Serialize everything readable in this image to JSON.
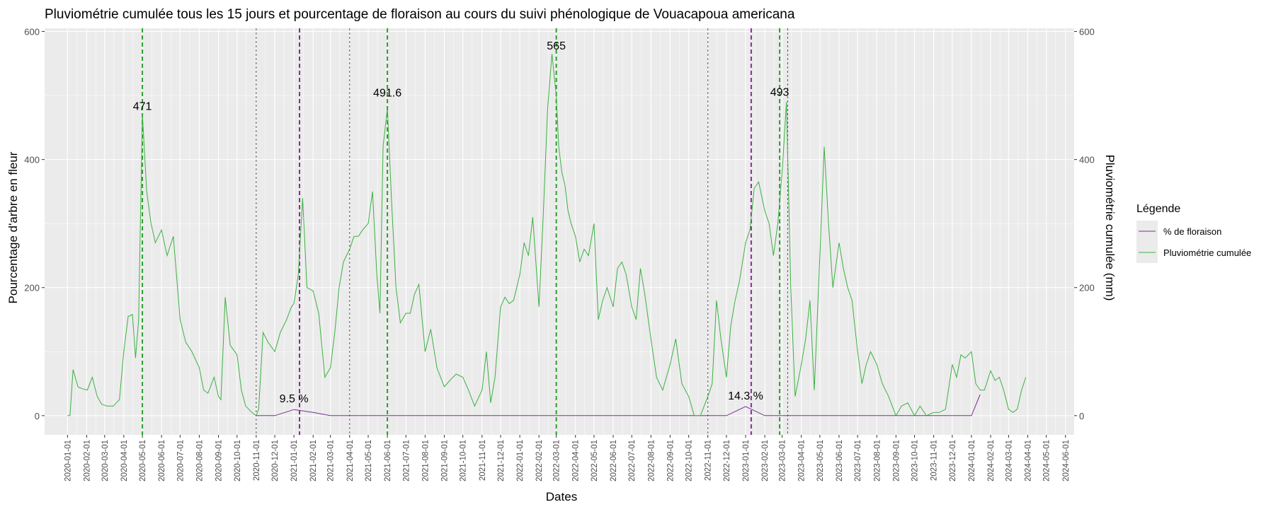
{
  "chart_data": {
    "type": "line",
    "title": "Pluviométrie cumulée tous les 15 jours et pourcentage de floraison au cours du suivi phénologique de Vouacapoua americana",
    "xlabel": "Dates",
    "ylabel": "Pourcentage d'arbre en fleur",
    "ylabel_right": "Pluviométrie cumulée (mm)",
    "xlim": [
      "2019-11-25",
      "2024-06-15"
    ],
    "ylim": [
      -30,
      605
    ],
    "yticks": [
      0,
      200,
      400,
      600
    ],
    "xtick_labels": [
      "2020-01-01",
      "2020-02-01",
      "2020-03-01",
      "2020-04-01",
      "2020-05-01",
      "2020-06-01",
      "2020-07-01",
      "2020-08-01",
      "2020-09-01",
      "2020-10-01",
      "2020-11-01",
      "2020-12-01",
      "2021-01-01",
      "2021-02-01",
      "2021-03-01",
      "2021-04-01",
      "2021-05-01",
      "2021-06-01",
      "2021-07-01",
      "2021-08-01",
      "2021-09-01",
      "2021-10-01",
      "2021-11-01",
      "2021-12-01",
      "2022-01-01",
      "2022-02-01",
      "2022-03-01",
      "2022-04-01",
      "2022-05-01",
      "2022-06-01",
      "2022-07-01",
      "2022-08-01",
      "2022-09-01",
      "2022-10-01",
      "2022-11-01",
      "2022-12-01",
      "2023-01-01",
      "2023-02-01",
      "2023-03-01",
      "2023-04-01",
      "2023-05-01",
      "2023-06-01",
      "2023-07-01",
      "2023-08-01",
      "2023-09-01",
      "2023-10-01",
      "2023-11-01",
      "2023-12-01",
      "2024-01-01",
      "2024-02-01",
      "2024-03-01",
      "2024-04-01",
      "2024-05-01",
      "2024-06-01"
    ],
    "grid": true,
    "legend": {
      "title": "Légende",
      "position": "right",
      "entries": [
        {
          "label": "% de floraison",
          "color": "#7b2d8e"
        },
        {
          "label": "Pluviométrie cumulée",
          "color": "#3cb043"
        }
      ]
    },
    "series": [
      {
        "name": "% de floraison",
        "color": "#7b2d8e",
        "x": [
          "2020-11-01",
          "2020-12-01",
          "2021-01-01",
          "2021-02-01",
          "2021-03-01",
          "2021-04-01",
          "2022-06-01",
          "2022-12-01",
          "2023-01-01",
          "2023-02-01",
          "2023-03-01",
          "2023-12-01",
          "2024-01-01",
          "2024-01-15"
        ],
        "y": [
          0,
          0,
          9.5,
          5,
          0,
          0,
          0,
          0,
          14.3,
          0,
          0,
          0,
          0,
          33
        ]
      },
      {
        "name": "Pluviométrie cumulée",
        "color": "#3cb043",
        "x": [
          "2020-01-01",
          "2020-01-05",
          "2020-01-10",
          "2020-01-18",
          "2020-01-25",
          "2020-02-02",
          "2020-02-10",
          "2020-02-18",
          "2020-02-25",
          "2020-03-05",
          "2020-03-15",
          "2020-03-25",
          "2020-04-01",
          "2020-04-08",
          "2020-04-15",
          "2020-04-20",
          "2020-04-25",
          "2020-05-01",
          "2020-05-08",
          "2020-05-15",
          "2020-05-22",
          "2020-06-01",
          "2020-06-10",
          "2020-06-20",
          "2020-07-01",
          "2020-07-10",
          "2020-07-20",
          "2020-08-01",
          "2020-08-08",
          "2020-08-15",
          "2020-08-25",
          "2020-09-01",
          "2020-09-05",
          "2020-09-12",
          "2020-09-20",
          "2020-10-01",
          "2020-10-08",
          "2020-10-15",
          "2020-10-25",
          "2020-11-01",
          "2020-11-05",
          "2020-11-12",
          "2020-11-20",
          "2020-12-01",
          "2020-12-10",
          "2020-12-20",
          "2020-12-28",
          "2021-01-01",
          "2021-01-08",
          "2021-01-15",
          "2021-01-22",
          "2021-02-01",
          "2021-02-10",
          "2021-02-20",
          "2021-03-01",
          "2021-03-08",
          "2021-03-15",
          "2021-03-22",
          "2021-04-01",
          "2021-04-08",
          "2021-04-15",
          "2021-04-22",
          "2021-05-01",
          "2021-05-08",
          "2021-05-15",
          "2021-05-20",
          "2021-05-25",
          "2021-06-01",
          "2021-06-08",
          "2021-06-15",
          "2021-06-22",
          "2021-07-01",
          "2021-07-08",
          "2021-07-15",
          "2021-07-22",
          "2021-08-01",
          "2021-08-10",
          "2021-08-20",
          "2021-09-01",
          "2021-09-10",
          "2021-09-20",
          "2021-10-01",
          "2021-10-10",
          "2021-10-20",
          "2021-11-01",
          "2021-11-08",
          "2021-11-15",
          "2021-11-22",
          "2021-12-01",
          "2021-12-08",
          "2021-12-15",
          "2021-12-22",
          "2022-01-01",
          "2022-01-08",
          "2022-01-15",
          "2022-01-22",
          "2022-02-01",
          "2022-02-08",
          "2022-02-15",
          "2022-02-22",
          "2022-03-01",
          "2022-03-05",
          "2022-03-10",
          "2022-03-15",
          "2022-03-20",
          "2022-03-25",
          "2022-04-01",
          "2022-04-08",
          "2022-04-15",
          "2022-04-22",
          "2022-05-01",
          "2022-05-08",
          "2022-05-15",
          "2022-05-22",
          "2022-06-01",
          "2022-06-08",
          "2022-06-15",
          "2022-06-22",
          "2022-07-01",
          "2022-07-08",
          "2022-07-15",
          "2022-07-22",
          "2022-08-01",
          "2022-08-10",
          "2022-08-20",
          "2022-09-01",
          "2022-09-10",
          "2022-09-20",
          "2022-10-01",
          "2022-10-10",
          "2022-10-20",
          "2022-11-01",
          "2022-11-08",
          "2022-11-15",
          "2022-11-22",
          "2022-12-01",
          "2022-12-08",
          "2022-12-15",
          "2022-12-22",
          "2023-01-01",
          "2023-01-08",
          "2023-01-15",
          "2023-01-22",
          "2023-02-01",
          "2023-02-08",
          "2023-02-15",
          "2023-02-22",
          "2023-03-01",
          "2023-03-08",
          "2023-03-15",
          "2023-03-22",
          "2023-04-01",
          "2023-04-08",
          "2023-04-15",
          "2023-04-22",
          "2023-05-01",
          "2023-05-08",
          "2023-05-15",
          "2023-05-22",
          "2023-06-01",
          "2023-06-08",
          "2023-06-15",
          "2023-06-22",
          "2023-07-01",
          "2023-07-08",
          "2023-07-15",
          "2023-07-22",
          "2023-08-01",
          "2023-08-10",
          "2023-08-20",
          "2023-09-01",
          "2023-09-10",
          "2023-09-20",
          "2023-10-01",
          "2023-10-10",
          "2023-10-20",
          "2023-11-01",
          "2023-11-10",
          "2023-11-20",
          "2023-12-01",
          "2023-12-08",
          "2023-12-15",
          "2023-12-22",
          "2024-01-01",
          "2024-01-08",
          "2024-01-15",
          "2024-01-22",
          "2024-02-01",
          "2024-02-08",
          "2024-02-15",
          "2024-02-22",
          "2024-03-01",
          "2024-03-08",
          "2024-03-15",
          "2024-03-22",
          "2024-03-29"
        ],
        "y": [
          0,
          0,
          72,
          45,
          42,
          40,
          60,
          30,
          18,
          15,
          15,
          25,
          100,
          155,
          158,
          90,
          150,
          471,
          350,
          300,
          270,
          290,
          250,
          280,
          150,
          115,
          100,
          75,
          40,
          35,
          60,
          30,
          25,
          185,
          110,
          95,
          40,
          15,
          5,
          0,
          10,
          130,
          115,
          100,
          130,
          150,
          170,
          175,
          220,
          340,
          200,
          195,
          160,
          60,
          75,
          130,
          200,
          240,
          260,
          280,
          280,
          290,
          300,
          350,
          220,
          160,
          420,
          480,
          330,
          200,
          145,
          160,
          160,
          190,
          205,
          100,
          135,
          75,
          45,
          55,
          65,
          60,
          40,
          15,
          40,
          100,
          20,
          60,
          170,
          185,
          175,
          180,
          220,
          270,
          250,
          310,
          170,
          315,
          480,
          565,
          500,
          420,
          380,
          360,
          320,
          300,
          280,
          240,
          260,
          250,
          300,
          150,
          180,
          200,
          170,
          230,
          240,
          220,
          170,
          150,
          230,
          190,
          120,
          60,
          40,
          80,
          120,
          50,
          30,
          0,
          0,
          30,
          50,
          180,
          120,
          60,
          140,
          180,
          210,
          270,
          290,
          355,
          365,
          320,
          300,
          250,
          300,
          380,
          490,
          200,
          30,
          80,
          120,
          180,
          40,
          250,
          420,
          300,
          200,
          270,
          230,
          200,
          180,
          100,
          50,
          80,
          100,
          80,
          50,
          30,
          0,
          15,
          20,
          0,
          15,
          0,
          5,
          5,
          10,
          80,
          60,
          95,
          90,
          100,
          50,
          40,
          40,
          70,
          55,
          60,
          40,
          10,
          5,
          10,
          40,
          60
        ],
        "annotations": [
          {
            "x": "2020-05-01",
            "y": 471,
            "label": "471"
          },
          {
            "x": "2021-06-01",
            "y": 491.6,
            "label": "491.6"
          },
          {
            "x": "2022-03-01",
            "y": 565,
            "label": "565"
          },
          {
            "x": "2023-02-25",
            "y": 493,
            "label": "493"
          }
        ]
      }
    ],
    "flowering_annotations": [
      {
        "x": "2021-01-01",
        "y": 9.5,
        "label": "9.5 %"
      },
      {
        "x": "2023-01-01",
        "y": 14.3,
        "label": "14.3 %"
      }
    ],
    "vlines": [
      {
        "x": "2020-05-01",
        "color": "#2ca02c",
        "style": "dashed-green"
      },
      {
        "x": "2021-06-01",
        "color": "#2ca02c",
        "style": "dashed-green"
      },
      {
        "x": "2022-03-01",
        "color": "#2ca02c",
        "style": "dashed-green"
      },
      {
        "x": "2023-02-25",
        "color": "#2ca02c",
        "style": "dashed-green"
      },
      {
        "x": "2021-01-10",
        "color": "#8b2a9b",
        "style": "dashed-purple"
      },
      {
        "x": "2023-01-10",
        "color": "#8b2a9b",
        "style": "dashed-purple"
      },
      {
        "x": "2020-11-01",
        "color": "#555555",
        "style": "dotted-grey"
      },
      {
        "x": "2021-04-01",
        "color": "#555555",
        "style": "dotted-grey"
      },
      {
        "x": "2022-11-01",
        "color": "#555555",
        "style": "dotted-grey"
      },
      {
        "x": "2023-03-10",
        "color": "#555555",
        "style": "dotted-grey"
      }
    ],
    "colors": {
      "panel_background": "#ebebeb",
      "grid_major": "#ffffff",
      "flowering": "#7b2d8e",
      "rain": "#3cb043"
    }
  }
}
